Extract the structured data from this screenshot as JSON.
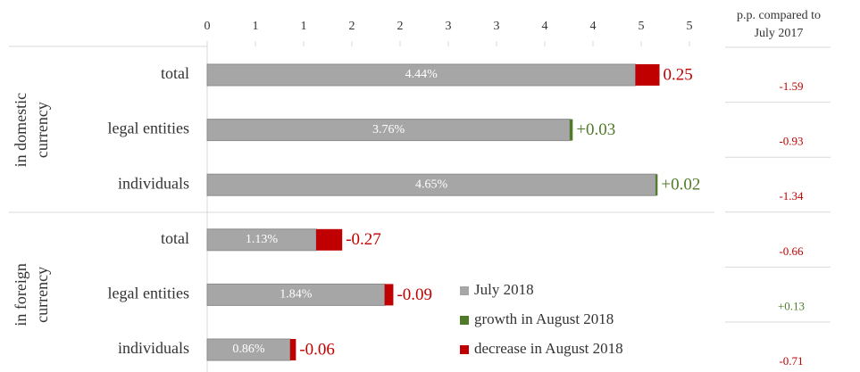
{
  "chart_data": {
    "type": "bar_change",
    "categories": [
      "total",
      "legal entities",
      "individuals",
      "total",
      "legal entities",
      "individuals"
    ],
    "groups": [
      {
        "lines": [
          "in domestic",
          "currency"
        ]
      },
      {
        "lines": [
          "in foreign",
          "currency"
        ]
      }
    ],
    "series": [
      {
        "name": "July 2018",
        "color": "#a6a6a6",
        "values": [
          4.44,
          3.76,
          4.65,
          1.13,
          1.84,
          0.86
        ],
        "value_labels": [
          "4.44%",
          "3.76%",
          "4.65%",
          "1.13%",
          "1.84%",
          "0.86%"
        ]
      },
      {
        "name": "growth in August 2018",
        "color": "#4f7a28",
        "values": [
          null,
          0.03,
          0.02,
          null,
          null,
          null
        ],
        "value_labels": [
          null,
          "+0.03",
          "+0.02",
          null,
          null,
          null
        ]
      },
      {
        "name": "decrease in August 2018",
        "color": "#c00000",
        "values": [
          -0.25,
          null,
          null,
          -0.27,
          -0.09,
          -0.06
        ],
        "value_labels": [
          "0.25",
          null,
          null,
          "-0.27",
          "-0.09",
          "-0.06"
        ]
      }
    ],
    "xlim": [
      0,
      5
    ],
    "xticks": [
      0,
      {
        "value": 0.5,
        "label": "1"
      },
      1,
      {
        "value": 1.5,
        "label": "2"
      },
      2,
      {
        "value": 2.5,
        "label": "3"
      },
      3,
      {
        "value": 3.5,
        "label": "4"
      },
      4,
      {
        "value": 4.5,
        "label": "5"
      },
      5
    ],
    "comparison": {
      "title": "p.p. compared to July 2017",
      "values": [
        "-1.59",
        "-0.93",
        "-1.34",
        "-0.66",
        "+0.13",
        "-0.71"
      ]
    }
  }
}
